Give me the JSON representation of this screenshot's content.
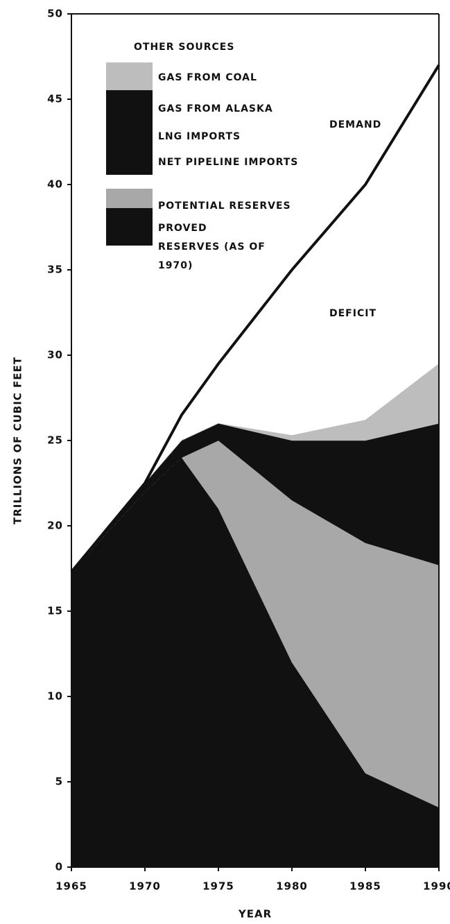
{
  "chart_data": {
    "type": "stacked-area",
    "ylabel": "TRILLIONS OF CUBIC FEET",
    "xlabel": "YEAR",
    "legend_title": "OTHER SOURCES",
    "annotations": [
      "DEMAND",
      "DEFICIT"
    ],
    "x": [
      1965,
      1970,
      1972.5,
      1975,
      1980,
      1985,
      1990
    ],
    "series": [
      {
        "name": "PROVED RESERVES (AS OF 1970)",
        "color": "#111111",
        "values": [
          17.3,
          22,
          24,
          21,
          12,
          5.5,
          3.5
        ]
      },
      {
        "name": "POTENTIAL RESERVES",
        "color": "#a8a8a8",
        "values": [
          0,
          0,
          0,
          4,
          9.5,
          13.5,
          14.2
        ]
      },
      {
        "name": "NET PIPELINE IMPORTS",
        "color": "#111111",
        "values": [
          0,
          0.5,
          0.8,
          0.8,
          1,
          1.5,
          2
        ]
      },
      {
        "name": "LNG IMPORTS",
        "color": "#111111",
        "values": [
          0,
          0,
          0.2,
          0.2,
          1.5,
          2.5,
          3.3
        ]
      },
      {
        "name": "GAS FROM ALASKA",
        "color": "#111111",
        "values": [
          0,
          0,
          0,
          0,
          1,
          2,
          3
        ]
      },
      {
        "name": "GAS FROM COAL",
        "color": "#bdbdbd",
        "values": [
          0,
          0,
          0,
          0,
          0.3,
          1.2,
          3.5
        ]
      },
      {
        "name": "DEMAND",
        "type": "line",
        "color": "#111111",
        "values": [
          17.3,
          22.5,
          26.5,
          29.5,
          35,
          40,
          47
        ]
      }
    ],
    "xlim": [
      1965,
      1990
    ],
    "ylim": [
      0,
      50
    ],
    "xticks": [
      1965,
      1970,
      1975,
      1980,
      1985,
      1990
    ],
    "yticks": [
      0,
      5,
      10,
      15,
      20,
      25,
      30,
      35,
      40,
      45,
      50
    ]
  }
}
